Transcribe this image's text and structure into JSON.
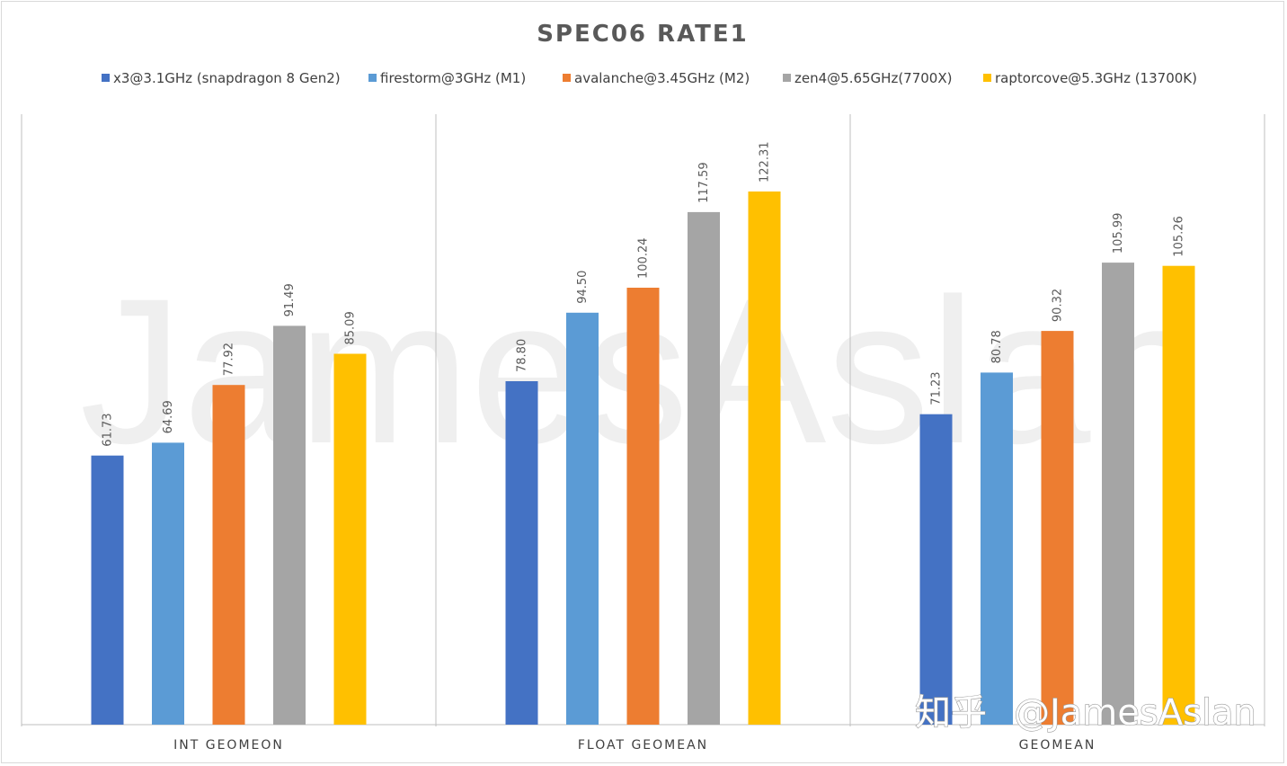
{
  "watermark": "JamesAslan",
  "brand": {
    "site": "知乎",
    "handle": "@JamesAslan"
  },
  "chart_data": {
    "type": "bar",
    "title": "SPEC06 RATE1",
    "categories": [
      "INT GEOMEON",
      "FLOAT GEOMEAN",
      "GEOMEAN"
    ],
    "ylim": [
      0,
      130
    ],
    "grid": false,
    "legend_position": "top",
    "series": [
      {
        "name": "x3@3.1GHz (snapdragon 8 Gen2)",
        "color": "#4472c4",
        "values": [
          61.73,
          78.8,
          71.23
        ]
      },
      {
        "name": "firestorm@3GHz (M1)",
        "color": "#5b9bd5",
        "values": [
          64.69,
          94.5,
          80.78
        ]
      },
      {
        "name": "avalanche@3.45GHz (M2)",
        "color": "#ed7d31",
        "values": [
          77.92,
          100.24,
          90.32
        ]
      },
      {
        "name": "zen4@5.65GHz(7700X)",
        "color": "#a5a5a5",
        "values": [
          91.49,
          117.59,
          105.99
        ]
      },
      {
        "name": "raptorcove@5.3GHz (13700K)",
        "color": "#ffc000",
        "values": [
          85.09,
          122.31,
          105.26
        ]
      }
    ]
  }
}
